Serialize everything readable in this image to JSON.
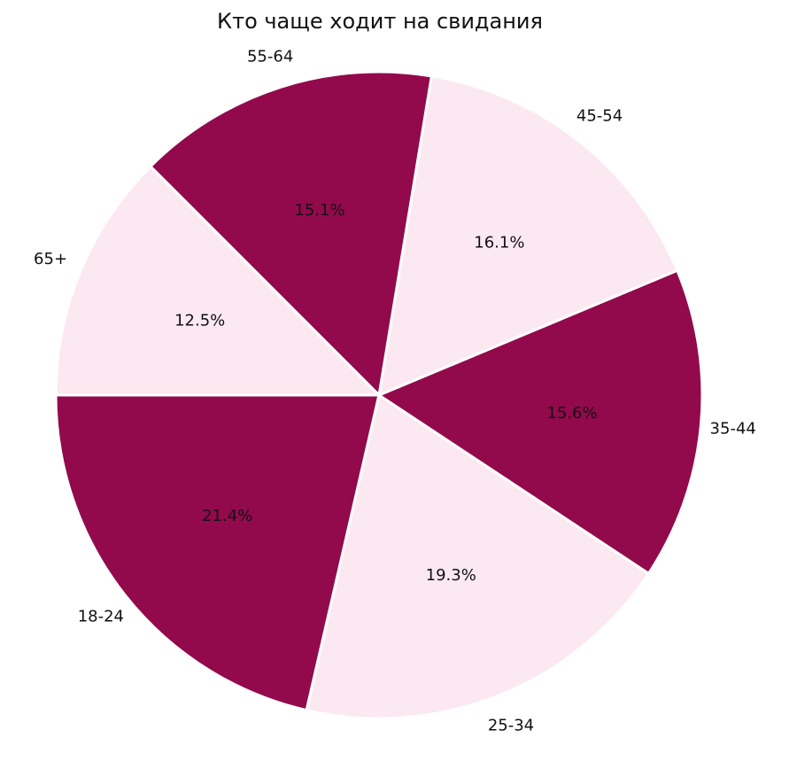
{
  "chart_data": {
    "type": "pie",
    "title": "Кто чаще ходит на свидания",
    "categories": [
      "18-24",
      "25-34",
      "35-44",
      "45-54",
      "55-64",
      "65+"
    ],
    "values": [
      21.4,
      19.3,
      15.6,
      16.1,
      15.1,
      12.5
    ],
    "value_labels": [
      "21.4%",
      "19.3%",
      "15.6%",
      "16.1%",
      "15.1%",
      "12.5%"
    ],
    "colors": [
      "#920a4c",
      "#fce8f1",
      "#920a4c",
      "#fce8f1",
      "#920a4c",
      "#fce8f1"
    ],
    "start_angle_deg": 180,
    "direction": "counterclockwise",
    "legend": "none"
  }
}
